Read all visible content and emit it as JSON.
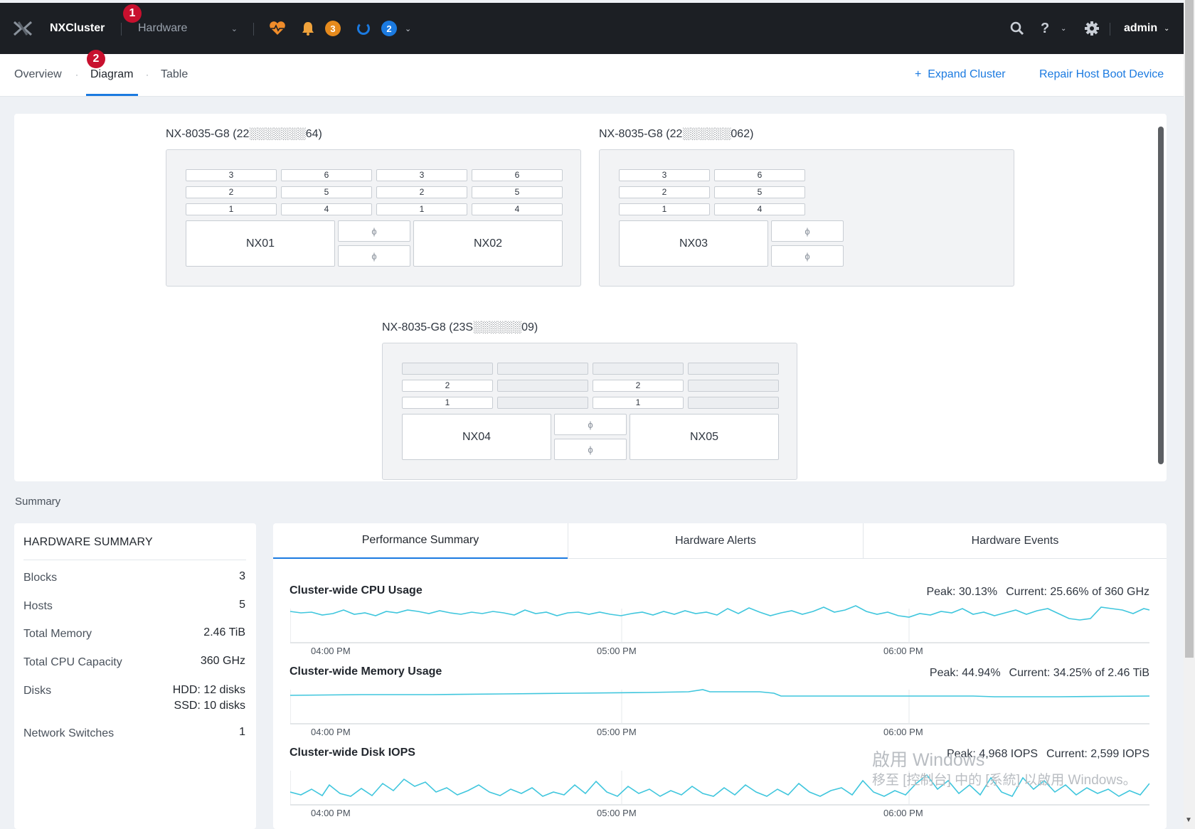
{
  "header": {
    "cluster_name": "NXCluster",
    "view_selector": "Hardware",
    "alerts_count": "3",
    "tasks_count": "2",
    "user": "admin"
  },
  "markers": [
    "1",
    "2"
  ],
  "subnav": {
    "tabs": [
      "Overview",
      "Diagram",
      "Table"
    ],
    "active_tab": "Diagram",
    "expand_cluster": "Expand Cluster",
    "repair_boot": "Repair Host Boot Device"
  },
  "blocks": [
    {
      "title": "NX-8035-G8 (22░░░░░░░64)",
      "node_a": "NX01",
      "node_b": "NX02",
      "slots_a": [
        [
          "3",
          "6"
        ],
        [
          "2",
          "5"
        ],
        [
          "1",
          "4"
        ]
      ],
      "slots_b": [
        [
          "3",
          "6"
        ],
        [
          "2",
          "5"
        ],
        [
          "1",
          "4"
        ]
      ]
    },
    {
      "title": "NX-8035-G8 (22░░░░░░062)",
      "node_a": "NX03",
      "slots_a": [
        [
          "3",
          "6"
        ],
        [
          "2",
          "5"
        ],
        [
          "1",
          "4"
        ]
      ]
    },
    {
      "title": "NX-8035-G8 (23S░░░░░░09)",
      "node_a": "NX04",
      "node_b": "NX05",
      "slots_a": [
        [
          "",
          ""
        ],
        [
          "2",
          ""
        ],
        [
          "1",
          ""
        ]
      ],
      "slots_b": [
        [
          "",
          ""
        ],
        [
          "2",
          ""
        ],
        [
          "1",
          ""
        ]
      ]
    }
  ],
  "summary_label": "Summary",
  "hardware_summary": {
    "title": "HARDWARE SUMMARY",
    "rows": [
      {
        "label": "Blocks",
        "value": "3"
      },
      {
        "label": "Hosts",
        "value": "5"
      },
      {
        "label": "Total Memory",
        "value": "2.46 TiB"
      },
      {
        "label": "Total CPU Capacity",
        "value": "360 GHz"
      },
      {
        "label": "Disks",
        "value": "HDD: 12 disks",
        "value2": "SSD: 10 disks"
      },
      {
        "label": "Network Switches",
        "value": "1"
      }
    ]
  },
  "performance": {
    "tabs": [
      "Performance Summary",
      "Hardware Alerts",
      "Hardware Events"
    ],
    "active_tab": "Performance Summary",
    "time_labels": [
      "04:00 PM",
      "05:00 PM",
      "06:00 PM"
    ],
    "metrics": [
      {
        "title": "Cluster-wide CPU Usage",
        "peak": "Peak: 30.13%",
        "current": "Current: 25.66% of 360 GHz"
      },
      {
        "title": "Cluster-wide Memory Usage",
        "peak": "Peak: 44.94%",
        "current": "Current: 34.25% of 2.46 TiB"
      },
      {
        "title": "Cluster-wide Disk IOPS",
        "peak": "Peak: 4,968 IOPS",
        "current": "Current: 2,599 IOPS"
      }
    ]
  },
  "watermark": {
    "line1": "啟用 Windows",
    "line2": "移至 [控制台] 中的 [系統] 以啟用 Windows。"
  },
  "colors": {
    "topbar": "#1c1f24",
    "accent": "#1b7ae0",
    "chart_line": "#3fc6dd",
    "alert_orange": "#e58a1d",
    "marker_red": "#c8102e"
  }
}
